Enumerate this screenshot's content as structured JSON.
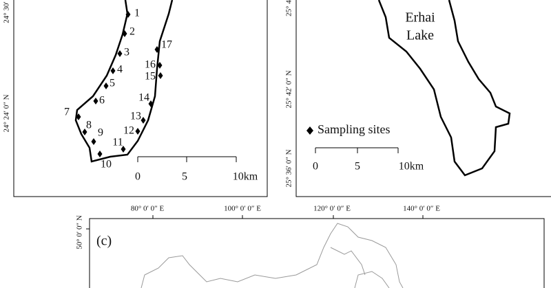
{
  "left_panel": {
    "lat_labels": [
      "24° 30′",
      "24° 24′ 0″ N"
    ],
    "sites": [
      "1",
      "2",
      "3",
      "4",
      "5",
      "6",
      "7",
      "8",
      "9",
      "10",
      "11",
      "12",
      "13",
      "14",
      "15",
      "16",
      "17"
    ],
    "scale_labels": [
      "0",
      "5",
      "10km"
    ]
  },
  "right_panel": {
    "lat_labels": [
      "25° 4",
      "25° 42′ 0″ N",
      "25° 36′ 0″ N"
    ],
    "lake_name": [
      "Erhai",
      "Lake"
    ],
    "legend": "Sampling sites",
    "scale_labels": [
      "0",
      "5",
      "10km"
    ]
  },
  "bottom_panel": {
    "panel_label": "(c)",
    "lon_labels": [
      "80° 0′ 0″ E",
      "100° 0′ 0″ E",
      "120° 0′ 0″ E",
      "140° 0′ 0″ E"
    ],
    "lat_labels": [
      "50° 0′ 0″ N"
    ]
  }
}
